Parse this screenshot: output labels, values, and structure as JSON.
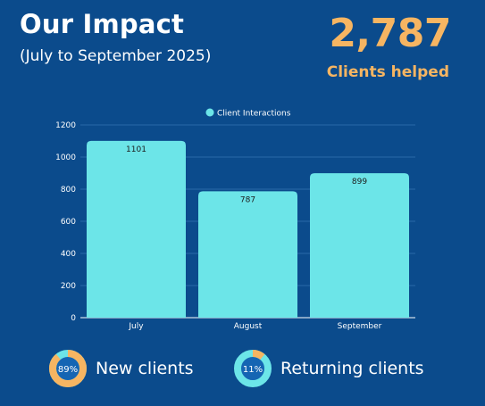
{
  "header": {
    "title": "Our Impact",
    "subtitle": "(July to September 2025)"
  },
  "kpi": {
    "value": "2,787",
    "label": "Clients helped",
    "color": "#f6b562"
  },
  "chart_data": {
    "type": "bar",
    "categories": [
      "July",
      "August",
      "September"
    ],
    "series": [
      {
        "name": "Client Interactions",
        "values": [
          1101,
          787,
          899
        ],
        "color": "#6ce5e8"
      }
    ],
    "data_labels": [
      "1101",
      "787",
      "899"
    ],
    "yticks": [
      0,
      200,
      400,
      600,
      800,
      1000,
      1200
    ],
    "ylim": [
      0,
      1200
    ],
    "grid": true,
    "legend": "top-center"
  },
  "stats": [
    {
      "percent_label": "89%",
      "fraction": 0.89,
      "label": "New clients"
    },
    {
      "percent_label": "11%",
      "fraction": 0.11,
      "label": "Returning clients"
    }
  ],
  "colors": {
    "background": "#0b4b8c",
    "accent": "#f6b562",
    "bar": "#6ce5e8",
    "donut_ring_light": "#6ce5e8",
    "donut_inner": "#1565b3"
  }
}
